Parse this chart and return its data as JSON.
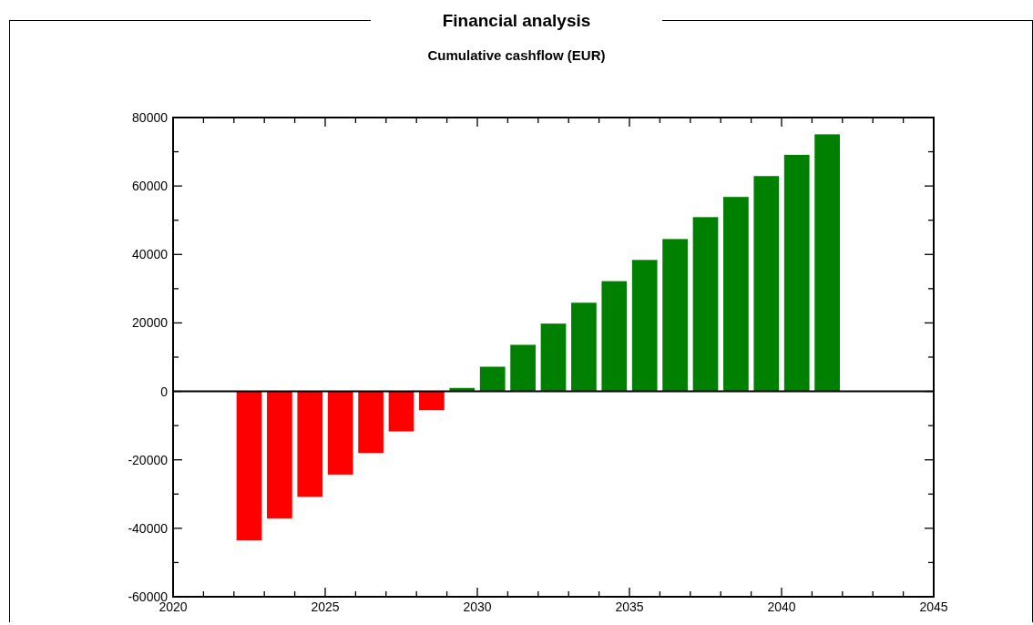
{
  "chart_data": {
    "type": "bar",
    "title": "Financial analysis",
    "subtitle": "Cumulative cashflow (EUR)",
    "x": [
      2022.5,
      2023.5,
      2024.5,
      2025.5,
      2026.5,
      2027.5,
      2028.5,
      2029.5,
      2030.5,
      2031.5,
      2032.5,
      2033.5,
      2034.5,
      2035.5,
      2036.5,
      2037.5,
      2038.5,
      2039.5,
      2040.5,
      2041.5
    ],
    "values": [
      -43500,
      -37100,
      -30800,
      -24300,
      -18000,
      -11700,
      -5500,
      1000,
      7200,
      13600,
      19800,
      25900,
      32200,
      38400,
      44500,
      50900,
      56800,
      62900,
      69100,
      75100
    ],
    "colors": [
      "#ff0000",
      "#ff0000",
      "#ff0000",
      "#ff0000",
      "#ff0000",
      "#ff0000",
      "#ff0000",
      "#008000",
      "#008000",
      "#008000",
      "#008000",
      "#008000",
      "#008000",
      "#008000",
      "#008000",
      "#008000",
      "#008000",
      "#008000",
      "#008000",
      "#008000"
    ],
    "xlim": [
      2020,
      2045
    ],
    "xticks": [
      2020,
      {
        "value": 2021,
        "label": null
      },
      {
        "value": 2022,
        "label": null
      },
      {
        "value": 2023,
        "label": null
      },
      {
        "value": 2024,
        "label": null
      },
      2025,
      {
        "value": 2026,
        "label": null
      },
      {
        "value": 2027,
        "label": null
      },
      {
        "value": 2028,
        "label": null
      },
      {
        "value": 2029,
        "label": null
      },
      2030,
      {
        "value": 2031,
        "label": null
      },
      {
        "value": 2032,
        "label": null
      },
      {
        "value": 2033,
        "label": null
      },
      {
        "value": 2034,
        "label": null
      },
      2035,
      {
        "value": 2036,
        "label": null
      },
      {
        "value": 2037,
        "label": null
      },
      {
        "value": 2038,
        "label": null
      },
      {
        "value": 2039,
        "label": null
      },
      2040,
      {
        "value": 2041,
        "label": null
      },
      {
        "value": 2042,
        "label": null
      },
      {
        "value": 2043,
        "label": null
      },
      {
        "value": 2044,
        "label": null
      },
      2045
    ],
    "ylim": [
      -60000,
      80000
    ],
    "yticks": [
      -60000,
      {
        "value": -50000,
        "label": null
      },
      -40000,
      {
        "value": -30000,
        "label": null
      },
      -20000,
      {
        "value": -10000,
        "label": null
      },
      0,
      {
        "value": 10000,
        "label": null
      },
      20000,
      {
        "value": 30000,
        "label": null
      },
      40000,
      {
        "value": 50000,
        "label": null
      },
      60000,
      {
        "value": 70000,
        "label": null
      },
      80000
    ],
    "tick_labels": "xy"
  }
}
